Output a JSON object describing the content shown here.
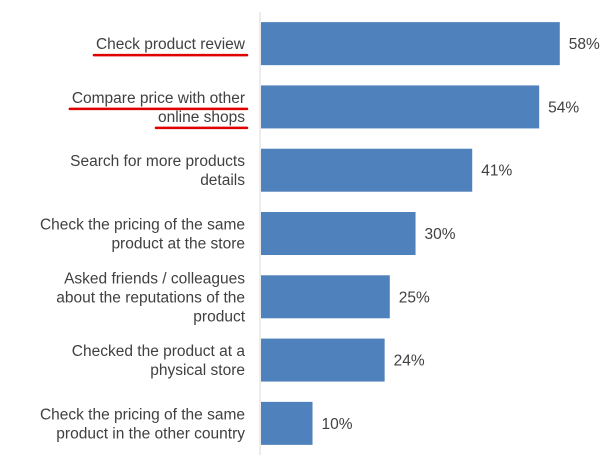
{
  "chart_data": {
    "type": "bar",
    "orientation": "horizontal",
    "categories": [
      [
        "Check product review"
      ],
      [
        "Compare price with other",
        "online shops"
      ],
      [
        "Search for more products",
        "details"
      ],
      [
        "Check the pricing of the same",
        "product at the store"
      ],
      [
        "Asked friends / colleagues",
        "about the reputations of the",
        "product"
      ],
      [
        "Checked the product at a",
        "physical store"
      ],
      [
        "Check the pricing of the same",
        "product in the other country"
      ]
    ],
    "values": [
      58,
      54,
      41,
      30,
      25,
      24,
      10
    ],
    "value_labels": [
      "58%",
      "54%",
      "41%",
      "30%",
      "25%",
      "24%",
      "10%"
    ],
    "unit": "%",
    "xlim": [
      0,
      66
    ],
    "bar_color": "#4f81bd",
    "highlight_color": "#e00000",
    "highlighted_categories": [
      0,
      1
    ],
    "grid": false,
    "legend": "none",
    "title": "",
    "xlabel": "",
    "ylabel": ""
  }
}
